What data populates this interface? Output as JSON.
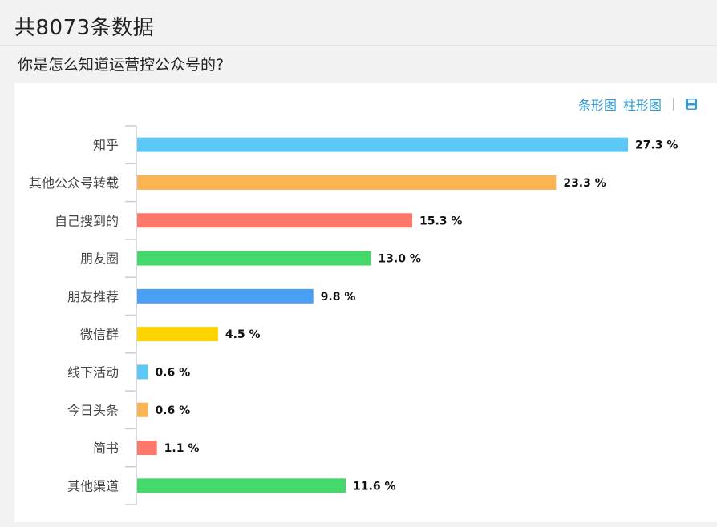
{
  "header": {
    "count_title": "共8073条数据"
  },
  "question": "你是怎么知道运营控公众号的?",
  "toolbar": {
    "bar_chart_label": "条形图",
    "column_chart_label": "柱形图",
    "save_icon": "save-icon"
  },
  "chart_data": {
    "type": "bar",
    "orientation": "horizontal",
    "categories": [
      "知乎",
      "其他公众号转载",
      "自己搜到的",
      "朋友圈",
      "朋友推荐",
      "微信群",
      "线下活动",
      "今日头条",
      "简书",
      "其他渠道"
    ],
    "values": [
      27.3,
      23.3,
      15.3,
      13.0,
      9.8,
      4.5,
      0.6,
      0.6,
      1.1,
      11.6
    ],
    "value_labels": [
      "27.3 %",
      "23.3 %",
      "15.3 %",
      "13.0 %",
      "9.8 %",
      "4.5 %",
      "0.6 %",
      "0.6 %",
      "1.1 %",
      "11.6 %"
    ],
    "colors": [
      "#5bc8f5",
      "#fbb452",
      "#fd786a",
      "#44d96a",
      "#4aa0f5",
      "#fed400",
      "#5bc8f5",
      "#fbb452",
      "#fd786a",
      "#44d96a"
    ],
    "unit": "%",
    "xlim": [
      0,
      27.3
    ]
  }
}
